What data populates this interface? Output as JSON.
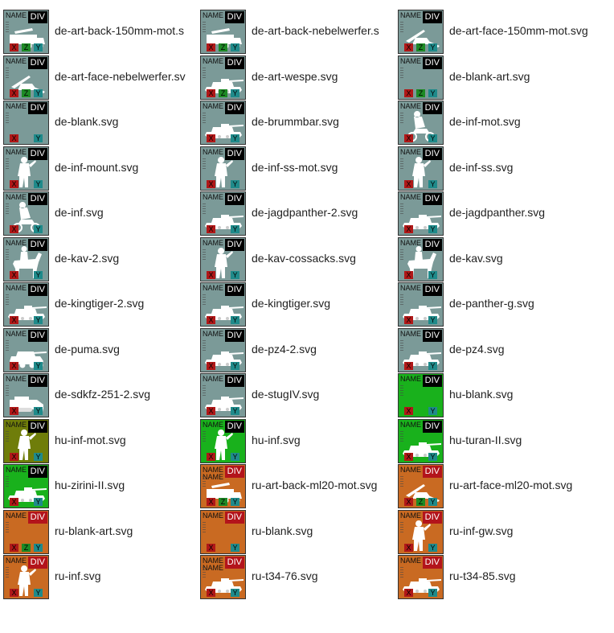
{
  "colors": {
    "de": "#7b9a98",
    "hu_olive": "#6f7d0a",
    "hu_green": "#19b11c",
    "ru": "#c96a22",
    "div_black": "#000000",
    "div_red": "#b3141b"
  },
  "tile_labels": {
    "name": "NAME",
    "div": "DIV",
    "x": "X",
    "z": "Z",
    "y": "Y"
  },
  "rows": [
    [
      {
        "file": "de-art-back-150mm-mot.s",
        "bg": "de",
        "div": "div_black",
        "name2": false,
        "z": true,
        "icon": "truck-gun-icon"
      },
      {
        "file": "de-art-back-nebelwerfer.s",
        "bg": "de",
        "div": "div_black",
        "name2": false,
        "z": true,
        "icon": "truck-gun-icon"
      },
      {
        "file": "de-art-face-150mm-mot.svg",
        "bg": "de",
        "div": "div_black",
        "name2": false,
        "z": true,
        "icon": "artillery-gun-icon"
      }
    ],
    [
      {
        "file": "de-art-face-nebelwerfer.sv",
        "bg": "de",
        "div": "div_black",
        "name2": false,
        "z": true,
        "icon": "artillery-gun-icon"
      },
      {
        "file": "de-art-wespe.svg",
        "bg": "de",
        "div": "div_black",
        "name2": false,
        "z": true,
        "icon": "tank-icon"
      },
      {
        "file": "de-blank-art.svg",
        "bg": "de",
        "div": "div_black",
        "name2": false,
        "z": true,
        "icon": ""
      }
    ],
    [
      {
        "file": "de-blank.svg",
        "bg": "de",
        "div": "div_black",
        "name2": false,
        "z": false,
        "icon": ""
      },
      {
        "file": "de-brummbar.svg",
        "bg": "de",
        "div": "div_black",
        "name2": false,
        "z": false,
        "icon": "tank-icon"
      },
      {
        "file": "de-inf-mot.svg",
        "bg": "de",
        "div": "div_black",
        "name2": false,
        "z": false,
        "icon": "motorcycle-soldier-icon"
      }
    ],
    [
      {
        "file": "de-inf-mount.svg",
        "bg": "de",
        "div": "div_black",
        "name2": false,
        "z": false,
        "icon": "soldier-icon"
      },
      {
        "file": "de-inf-ss-mot.svg",
        "bg": "de",
        "div": "div_black",
        "name2": false,
        "z": false,
        "icon": "soldier-icon"
      },
      {
        "file": "de-inf-ss.svg",
        "bg": "de",
        "div": "div_black",
        "name2": false,
        "z": false,
        "icon": "soldier-icon"
      }
    ],
    [
      {
        "file": "de-inf.svg",
        "bg": "de",
        "div": "div_black",
        "name2": false,
        "z": false,
        "icon": "motorcycle-soldier-icon"
      },
      {
        "file": "de-jagdpanther-2.svg",
        "bg": "de",
        "div": "div_black",
        "name2": false,
        "z": false,
        "icon": "tank-icon"
      },
      {
        "file": "de-jagdpanther.svg",
        "bg": "de",
        "div": "div_black",
        "name2": false,
        "z": false,
        "icon": "tank-icon"
      }
    ],
    [
      {
        "file": "de-kav-2.svg",
        "bg": "de",
        "div": "div_black",
        "name2": false,
        "z": false,
        "icon": "cavalry-icon"
      },
      {
        "file": "de-kav-cossacks.svg",
        "bg": "de",
        "div": "div_black",
        "name2": false,
        "z": false,
        "icon": "soldier-icon"
      },
      {
        "file": "de-kav.svg",
        "bg": "de",
        "div": "div_black",
        "name2": false,
        "z": false,
        "icon": "cavalry-icon"
      }
    ],
    [
      {
        "file": "de-kingtiger-2.svg",
        "bg": "de",
        "div": "div_black",
        "name2": false,
        "z": false,
        "icon": "tank-icon"
      },
      {
        "file": "de-kingtiger.svg",
        "bg": "de",
        "div": "div_black",
        "name2": false,
        "z": false,
        "icon": "tank-icon"
      },
      {
        "file": "de-panther-g.svg",
        "bg": "de",
        "div": "div_black",
        "name2": false,
        "z": false,
        "icon": "tank-icon"
      }
    ],
    [
      {
        "file": "de-puma.svg",
        "bg": "de",
        "div": "div_black",
        "name2": false,
        "z": false,
        "icon": "armored-car-icon"
      },
      {
        "file": "de-pz4-2.svg",
        "bg": "de",
        "div": "div_black",
        "name2": false,
        "z": false,
        "icon": "tank-icon"
      },
      {
        "file": "de-pz4.svg",
        "bg": "de",
        "div": "div_black",
        "name2": false,
        "z": false,
        "icon": "tank-icon"
      }
    ],
    [
      {
        "file": "de-sdkfz-251-2.svg",
        "bg": "de",
        "div": "div_black",
        "name2": false,
        "z": false,
        "icon": "halftrack-icon"
      },
      {
        "file": "de-stugIV.svg",
        "bg": "de",
        "div": "div_black",
        "name2": false,
        "z": false,
        "icon": "tank-icon"
      },
      {
        "file": "hu-blank.svg",
        "bg": "hu_green",
        "div": "div_black",
        "name2": false,
        "z": false,
        "icon": ""
      }
    ],
    [
      {
        "file": "hu-inf-mot.svg",
        "bg": "hu_olive",
        "div": "div_black",
        "name2": false,
        "z": false,
        "icon": "soldier-icon"
      },
      {
        "file": "hu-inf.svg",
        "bg": "hu_green",
        "div": "div_black",
        "name2": false,
        "z": false,
        "icon": "soldier-icon"
      },
      {
        "file": "hu-turan-II.svg",
        "bg": "hu_green",
        "div": "div_black",
        "name2": false,
        "z": false,
        "icon": "tank-icon"
      }
    ],
    [
      {
        "file": "hu-zirini-II.svg",
        "bg": "hu_green",
        "div": "div_black",
        "name2": false,
        "z": false,
        "icon": "tank-icon"
      },
      {
        "file": "ru-art-back-ml20-mot.svg",
        "bg": "ru",
        "div": "div_red",
        "name2": true,
        "z": true,
        "icon": "truck-gun-icon"
      },
      {
        "file": "ru-art-face-ml20-mot.svg",
        "bg": "ru",
        "div": "div_red",
        "name2": false,
        "z": true,
        "icon": "artillery-gun-icon"
      }
    ],
    [
      {
        "file": "ru-blank-art.svg",
        "bg": "ru",
        "div": "div_red",
        "name2": false,
        "z": true,
        "icon": ""
      },
      {
        "file": "ru-blank.svg",
        "bg": "ru",
        "div": "div_red",
        "name2": false,
        "z": false,
        "icon": ""
      },
      {
        "file": "ru-inf-gw.svg",
        "bg": "ru",
        "div": "div_red",
        "name2": false,
        "z": false,
        "icon": "soldier-icon"
      }
    ],
    [
      {
        "file": "ru-inf.svg",
        "bg": "ru",
        "div": "div_red",
        "name2": false,
        "z": false,
        "icon": "soldier-icon"
      },
      {
        "file": "ru-t34-76.svg",
        "bg": "ru",
        "div": "div_red",
        "name2": true,
        "z": false,
        "icon": "tank-icon"
      },
      {
        "file": "ru-t34-85.svg",
        "bg": "ru",
        "div": "div_red",
        "name2": false,
        "z": false,
        "icon": "tank-icon"
      }
    ]
  ]
}
